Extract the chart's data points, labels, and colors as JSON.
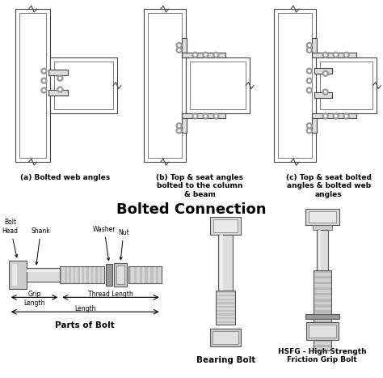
{
  "title": "Bolted Connection",
  "title_fontsize": 13,
  "background_color": "#ffffff",
  "label_a": "(a) Bolted web angles",
  "label_b": "(b) Top & seat angles\nbolted to the column\n& beam",
  "label_c": "(c) Top & seat bolted\nangles & bolted web\nangles",
  "label_parts": "Parts of Bolt",
  "label_bearing": "Bearing Bolt",
  "label_hsfg": "HSFG - High Strength\nFriction Grip Bolt"
}
